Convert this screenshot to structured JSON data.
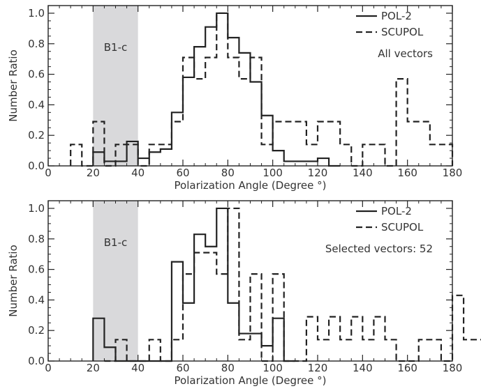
{
  "chart_data": [
    {
      "type": "step-histogram",
      "xlabel": "Polarization Angle (Degree °)",
      "ylabel": "Number Ratio",
      "xlim": [
        0,
        180
      ],
      "ylim": [
        0,
        1.05
      ],
      "xticks": [
        0,
        20,
        40,
        60,
        80,
        100,
        120,
        140,
        160,
        180
      ],
      "yticks": [
        0.0,
        0.2,
        0.4,
        0.6,
        0.8,
        1.0
      ],
      "xtick_labels": [
        "0",
        "20",
        "40",
        "60",
        "80",
        "100",
        "120",
        "140",
        "160",
        "180"
      ],
      "ytick_labels": [
        "0.0",
        "0.2",
        "0.4",
        "0.6",
        "0.8",
        "1.0"
      ],
      "shaded_region": {
        "label": "B1-c",
        "x_range": [
          20,
          40
        ],
        "color": "#d9d9db"
      },
      "annotation": "All vectors",
      "legend_position": "top-right",
      "bin_width": 5,
      "series": [
        {
          "name": "POL-2",
          "style": "solid",
          "color": "#222222",
          "bins_start": 20,
          "values": [
            0.09,
            0.03,
            0.03,
            0.16,
            0.05,
            0.09,
            0.11,
            0.35,
            0.58,
            0.78,
            0.91,
            1.0,
            0.84,
            0.74,
            0.55,
            0.33,
            0.1,
            0.03,
            0.03,
            0.03,
            0.05,
            0.0
          ]
        },
        {
          "name": "SCUPOL",
          "style": "dashed",
          "color": "#222222",
          "bins_start": 10,
          "values": [
            0.14,
            0.0,
            0.29,
            0.0,
            0.14,
            0.14,
            0.0,
            0.14,
            0.14,
            0.29,
            0.71,
            0.57,
            0.71,
            1.0,
            0.71,
            0.57,
            0.71,
            0.14,
            0.29,
            0.29,
            0.29,
            0.14,
            0.29,
            0.29,
            0.14,
            0.0,
            0.14,
            0.14,
            0.0,
            0.57,
            0.29,
            0.29,
            0.14,
            0.14
          ]
        }
      ]
    },
    {
      "type": "step-histogram",
      "xlabel": "Polarization Angle (Degree °)",
      "ylabel": "Number Ratio",
      "xlim": [
        0,
        180
      ],
      "ylim": [
        0,
        1.05
      ],
      "xticks": [
        0,
        20,
        40,
        60,
        80,
        100,
        120,
        140,
        160,
        180
      ],
      "yticks": [
        0.0,
        0.2,
        0.4,
        0.6,
        0.8,
        1.0
      ],
      "xtick_labels": [
        "0",
        "20",
        "40",
        "60",
        "80",
        "100",
        "120",
        "140",
        "160",
        "180"
      ],
      "ytick_labels": [
        "0.0",
        "0.2",
        "0.4",
        "0.6",
        "0.8",
        "1.0"
      ],
      "shaded_region": {
        "label": "B1-c",
        "x_range": [
          20,
          40
        ],
        "color": "#d9d9db"
      },
      "annotation": "Selected vectors: 52",
      "legend_position": "top-right",
      "bin_width": 5,
      "series": [
        {
          "name": "POL-2",
          "style": "solid",
          "color": "#222222",
          "bins_start": 20,
          "values": [
            0.28,
            0.09,
            0.0,
            0.0,
            0.0,
            0.0,
            0.0,
            0.65,
            0.38,
            0.83,
            0.75,
            1.0,
            0.38,
            0.18,
            0.18,
            0.1,
            0.28,
            0.0
          ]
        },
        {
          "name": "SCUPOL",
          "style": "dashed",
          "color": "#222222",
          "bins_start": 25,
          "values": [
            0.0,
            0.14,
            0.0,
            0.0,
            0.14,
            0.0,
            0.14,
            0.57,
            0.71,
            0.71,
            0.57,
            1.0,
            0.14,
            0.57,
            0.0,
            0.57,
            0.0,
            0.0,
            0.29,
            0.14,
            0.29,
            0.14,
            0.29,
            0.14,
            0.29,
            0.14,
            0.0,
            0.0,
            0.14,
            0.14,
            0.0,
            0.43,
            0.14,
            0.14,
            0.14,
            0.14
          ]
        }
      ]
    }
  ]
}
